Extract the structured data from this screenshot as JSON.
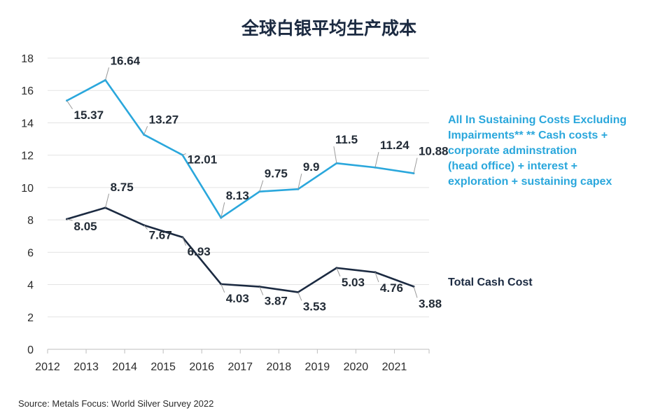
{
  "chart_data": {
    "type": "line",
    "title": "全球白银平均生产成本",
    "source": "Source: Metals Focus: World Silver Survey 2022",
    "x_ticks": [
      2012,
      2013,
      2014,
      2015,
      2016,
      2017,
      2018,
      2019,
      2020,
      2021
    ],
    "xlim": [
      2012,
      2021.9
    ],
    "ylim": [
      0,
      18
    ],
    "y_ticks": [
      0,
      2,
      4,
      6,
      8,
      10,
      12,
      14,
      16,
      18
    ],
    "grid": true,
    "legend_position": "right",
    "x": [
      2012.5,
      2013.5,
      2014.5,
      2015.5,
      2016.5,
      2017.5,
      2018.5,
      2019.5,
      2020.5,
      2021.5
    ],
    "series": [
      {
        "name": "All In Sustaining Costs Excluding Impairments** ** Cash costs + corporate adminstration (head office) + interest + exploration + sustaining capex",
        "legend_lines": [
          "All In Sustaining Costs Excluding",
          "Impairments**  ** Cash costs +",
          "corporate adminstration",
          "(head office)  + interest +",
          "exploration + sustaining capex"
        ],
        "color": "#2aa7dc",
        "values": [
          15.37,
          16.64,
          13.27,
          12.01,
          8.13,
          9.75,
          9.9,
          11.5,
          11.24,
          10.88
        ],
        "labels": [
          "15.37",
          "16.64",
          "13.27",
          "12.01",
          "8.13",
          "9.75",
          "9.9",
          "11.5",
          "11.24",
          "10.88"
        ]
      },
      {
        "name": "Total Cash Cost",
        "legend_lines": [
          "Total Cash Cost"
        ],
        "color": "#1b2a41",
        "values": [
          8.05,
          8.75,
          7.67,
          6.93,
          4.03,
          3.87,
          3.53,
          5.03,
          4.76,
          3.88
        ],
        "labels": [
          "8.05",
          "8.75",
          "7.67",
          "6.93",
          "4.03",
          "3.87",
          "3.53",
          "5.03",
          "4.76",
          "3.88"
        ]
      }
    ]
  }
}
